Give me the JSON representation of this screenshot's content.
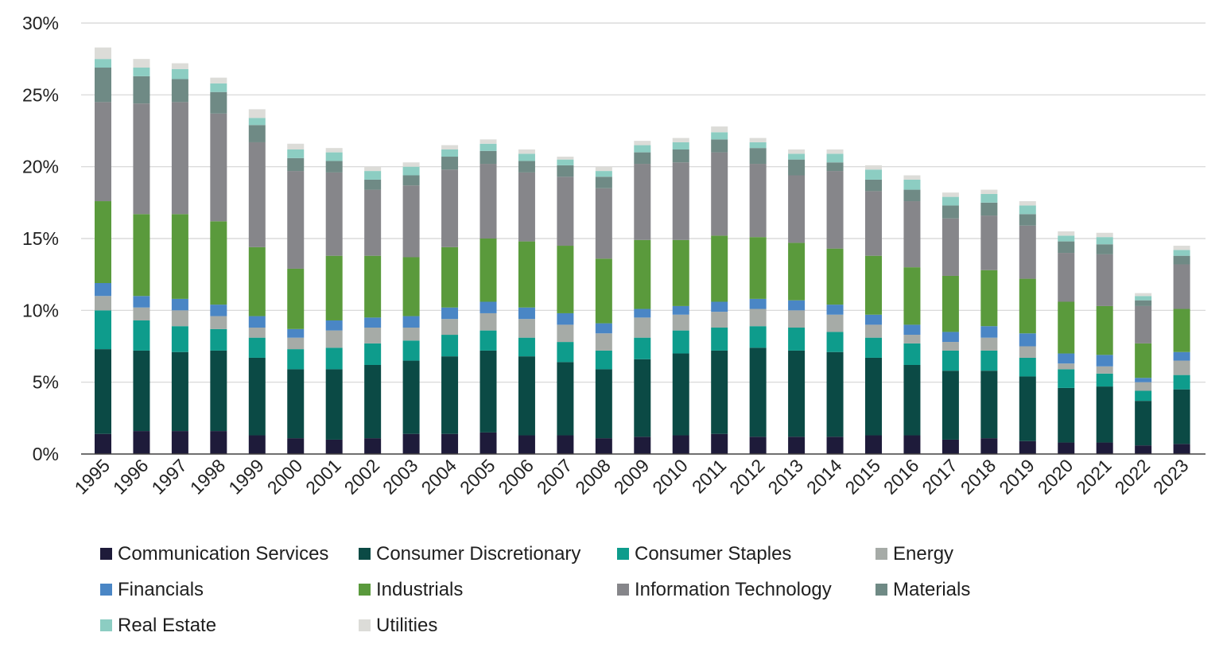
{
  "chart_data": {
    "type": "bar",
    "stacked": true,
    "title": "",
    "xlabel": "",
    "ylabel": "",
    "ylim": [
      0,
      30
    ],
    "yticks": [
      "0%",
      "5%",
      "10%",
      "15%",
      "20%",
      "25%",
      "30%"
    ],
    "grid": true,
    "legend_position": "bottom",
    "categories": [
      "1995",
      "1996",
      "1997",
      "1998",
      "1999",
      "2000",
      "2001",
      "2002",
      "2003",
      "2004",
      "2005",
      "2006",
      "2007",
      "2008",
      "2009",
      "2010",
      "2011",
      "2012",
      "2013",
      "2014",
      "2015",
      "2016",
      "2017",
      "2018",
      "2019",
      "2020",
      "2021",
      "2022",
      "2023"
    ],
    "series": [
      {
        "name": "Communication Services",
        "color": "#1e1b3a",
        "values": [
          1.4,
          1.6,
          1.6,
          1.6,
          1.3,
          1.1,
          1.0,
          1.1,
          1.4,
          1.4,
          1.5,
          1.3,
          1.3,
          1.1,
          1.2,
          1.3,
          1.4,
          1.2,
          1.2,
          1.2,
          1.3,
          1.3,
          1.0,
          1.1,
          0.9,
          0.8,
          0.8,
          0.6,
          0.7
        ]
      },
      {
        "name": "Consumer Discretionary",
        "color": "#0b4a45",
        "values": [
          5.9,
          5.6,
          5.5,
          5.6,
          5.4,
          4.8,
          4.9,
          5.1,
          5.1,
          5.4,
          5.7,
          5.5,
          5.1,
          4.8,
          5.4,
          5.7,
          5.8,
          6.2,
          6.0,
          5.9,
          5.4,
          4.9,
          4.8,
          4.7,
          4.5,
          3.8,
          3.9,
          3.1,
          3.8
        ]
      },
      {
        "name": "Consumer Staples",
        "color": "#0e9c8c",
        "values": [
          2.7,
          2.1,
          1.8,
          1.5,
          1.4,
          1.4,
          1.5,
          1.5,
          1.4,
          1.5,
          1.4,
          1.3,
          1.4,
          1.3,
          1.5,
          1.6,
          1.6,
          1.5,
          1.6,
          1.4,
          1.4,
          1.5,
          1.4,
          1.4,
          1.3,
          1.3,
          0.9,
          0.7,
          1.0
        ]
      },
      {
        "name": "Energy",
        "color": "#a6aba7",
        "values": [
          1.0,
          0.9,
          1.1,
          0.9,
          0.7,
          0.8,
          1.2,
          1.1,
          0.9,
          1.1,
          1.2,
          1.3,
          1.2,
          1.2,
          1.4,
          1.1,
          1.1,
          1.2,
          1.2,
          1.2,
          0.9,
          0.6,
          0.6,
          0.9,
          0.8,
          0.4,
          0.5,
          0.6,
          1.0
        ]
      },
      {
        "name": "Financials",
        "color": "#4a86c5",
        "values": [
          0.9,
          0.8,
          0.8,
          0.8,
          0.8,
          0.6,
          0.7,
          0.7,
          0.8,
          0.8,
          0.8,
          0.8,
          0.8,
          0.7,
          0.6,
          0.6,
          0.7,
          0.7,
          0.7,
          0.7,
          0.7,
          0.7,
          0.7,
          0.8,
          0.9,
          0.7,
          0.8,
          0.3,
          0.6
        ]
      },
      {
        "name": "Industrials",
        "color": "#5a9a3c",
        "values": [
          5.7,
          5.7,
          5.9,
          5.8,
          4.8,
          4.2,
          4.5,
          4.3,
          4.1,
          4.2,
          4.4,
          4.6,
          4.7,
          4.5,
          4.8,
          4.6,
          4.6,
          4.3,
          4.0,
          3.9,
          4.1,
          4.0,
          3.9,
          3.9,
          3.8,
          3.6,
          3.4,
          2.4,
          3.0
        ]
      },
      {
        "name": "Information Technology",
        "color": "#86868a",
        "values": [
          6.9,
          7.7,
          7.8,
          7.5,
          7.3,
          6.8,
          5.8,
          4.6,
          5.0,
          5.4,
          5.2,
          4.8,
          4.8,
          4.9,
          5.3,
          5.4,
          5.8,
          5.1,
          4.7,
          5.4,
          4.5,
          4.6,
          4.0,
          3.8,
          3.7,
          3.4,
          3.6,
          2.6,
          3.1
        ]
      },
      {
        "name": "Materials",
        "color": "#6f8a85",
        "values": [
          2.4,
          1.9,
          1.6,
          1.5,
          1.2,
          0.9,
          0.8,
          0.7,
          0.7,
          0.9,
          0.9,
          0.8,
          0.8,
          0.8,
          0.8,
          0.9,
          0.9,
          1.1,
          1.1,
          0.6,
          0.8,
          0.8,
          0.9,
          0.9,
          0.8,
          0.8,
          0.7,
          0.4,
          0.6
        ]
      },
      {
        "name": "Real Estate",
        "color": "#8ccdc2",
        "values": [
          0.6,
          0.6,
          0.7,
          0.6,
          0.5,
          0.6,
          0.6,
          0.6,
          0.6,
          0.5,
          0.5,
          0.5,
          0.4,
          0.4,
          0.5,
          0.5,
          0.5,
          0.4,
          0.4,
          0.6,
          0.7,
          0.7,
          0.6,
          0.6,
          0.6,
          0.4,
          0.5,
          0.3,
          0.4
        ]
      },
      {
        "name": "Utilities",
        "color": "#dcdcd8",
        "values": [
          0.8,
          0.6,
          0.4,
          0.4,
          0.6,
          0.4,
          0.3,
          0.3,
          0.3,
          0.3,
          0.3,
          0.3,
          0.2,
          0.3,
          0.3,
          0.3,
          0.4,
          0.3,
          0.3,
          0.3,
          0.3,
          0.3,
          0.3,
          0.3,
          0.3,
          0.3,
          0.3,
          0.2,
          0.3
        ]
      }
    ]
  }
}
